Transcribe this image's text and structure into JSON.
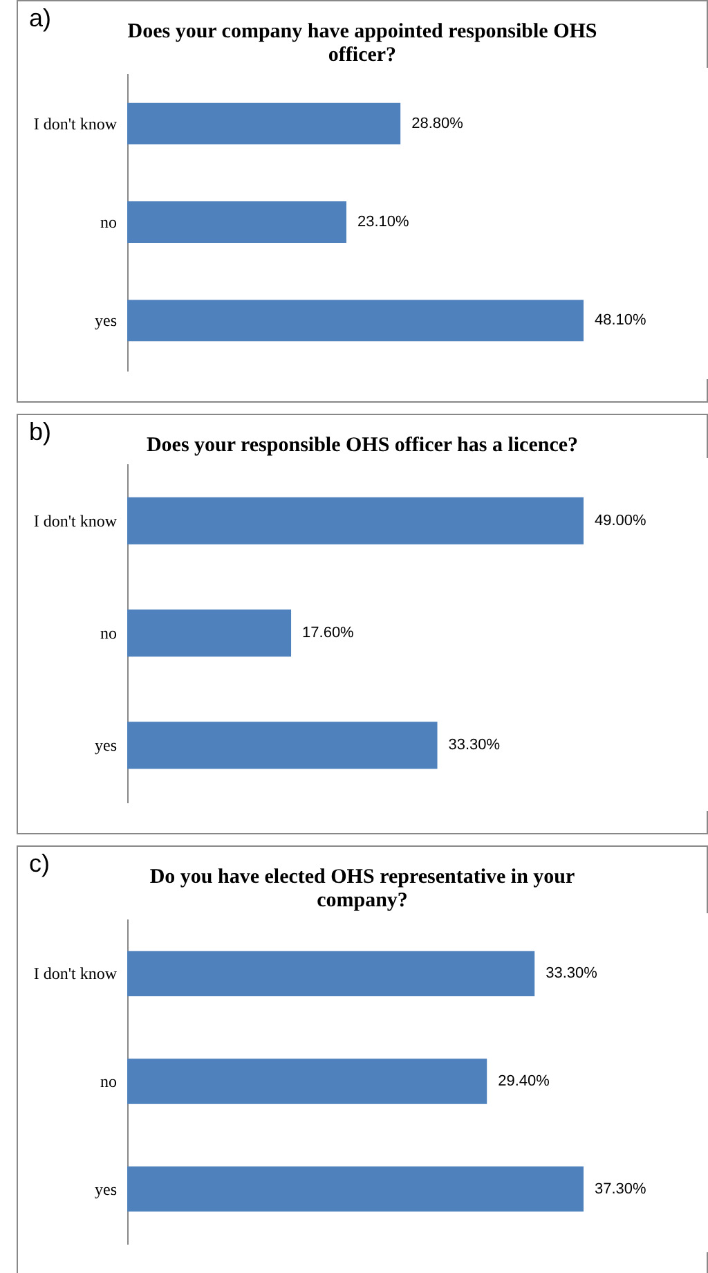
{
  "chart_data": [
    {
      "type": "bar",
      "orientation": "horizontal",
      "title": "Does your company have appointed responsible OHS officer?",
      "annotations": [
        "a)"
      ],
      "categories": [
        "I don't know",
        "no",
        "yes"
      ],
      "values": [
        28.8,
        23.1,
        48.1
      ],
      "value_labels": [
        "28.80%",
        "23.10%",
        "48.10%"
      ],
      "color": "#4f81bd"
    },
    {
      "type": "bar",
      "orientation": "horizontal",
      "title": "Does your responsible OHS officer has a licence?",
      "annotations": [
        "b)"
      ],
      "categories": [
        "I don't know",
        "no",
        "yes"
      ],
      "values": [
        49.0,
        17.6,
        33.3
      ],
      "value_labels": [
        "49.00%",
        "17.60%",
        "33.30%"
      ],
      "color": "#4f81bd"
    },
    {
      "type": "bar",
      "orientation": "horizontal",
      "title": "Do you have elected OHS representative in your company?",
      "annotations": [
        "c)"
      ],
      "categories": [
        "I don't know",
        "no",
        "yes"
      ],
      "values": [
        33.3,
        29.4,
        37.3
      ],
      "value_labels": [
        "33.30%",
        "29.40%",
        "37.30%"
      ],
      "color": "#4f81bd"
    }
  ]
}
